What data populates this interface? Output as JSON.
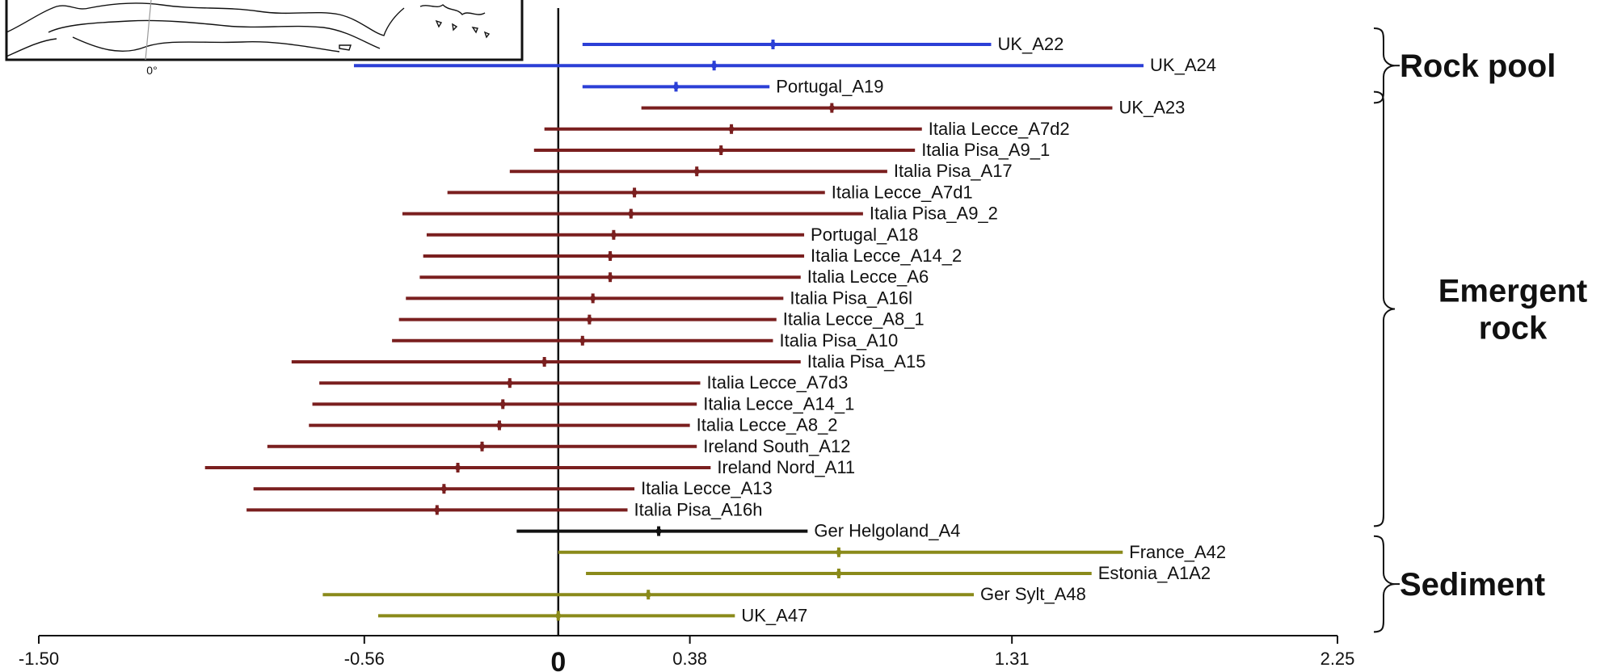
{
  "chart_data": {
    "type": "forest",
    "xlim": [
      -1.5,
      2.25
    ],
    "ticks": [
      {
        "value": -1.5,
        "label": "-1.50"
      },
      {
        "value": -0.56,
        "label": "-0.56"
      },
      {
        "value": 0.38,
        "label": "0.38"
      },
      {
        "value": 1.31,
        "label": "1.31"
      },
      {
        "value": 2.25,
        "label": "2.25"
      }
    ],
    "zero_label": "0",
    "inset_map_label": "0°",
    "colors": {
      "Rock pool": "#2b3fd6",
      "Emergent rock": "#7a1f1f",
      "Ger Helgoland": "#111111",
      "Sediment": "#8a8a1a"
    },
    "groups": [
      {
        "name": "Rock pool",
        "label_lines": [
          "Rock pool"
        ],
        "first": 0,
        "last": 2
      },
      {
        "name": "Emergent rock",
        "label_lines": [
          "Emergent",
          "rock"
        ],
        "first": 3,
        "last": 22
      },
      {
        "name": "Sediment",
        "label_lines": [
          "Sediment"
        ],
        "first": 24,
        "last": 27
      }
    ],
    "rows": [
      {
        "label": "UK_A22",
        "group": "Rock pool",
        "low": 0.07,
        "mid": 0.62,
        "high": 1.25
      },
      {
        "label": "UK_A24",
        "group": "Rock pool",
        "low": -0.59,
        "mid": 0.45,
        "high": 1.69
      },
      {
        "label": "Portugal_A19",
        "group": "Rock pool",
        "low": 0.07,
        "mid": 0.34,
        "high": 0.61
      },
      {
        "label": "UK_A23",
        "group": "Emergent rock",
        "low": 0.24,
        "mid": 0.79,
        "high": 1.6
      },
      {
        "label": "Italia Lecce_A7d2",
        "group": "Emergent rock",
        "low": -0.04,
        "mid": 0.5,
        "high": 1.05
      },
      {
        "label": "Italia Pisa_A9_1",
        "group": "Emergent rock",
        "low": -0.07,
        "mid": 0.47,
        "high": 1.03
      },
      {
        "label": "Italia Pisa_A17",
        "group": "Emergent rock",
        "low": -0.14,
        "mid": 0.4,
        "high": 0.95
      },
      {
        "label": "Italia Lecce_A7d1",
        "group": "Emergent rock",
        "low": -0.32,
        "mid": 0.22,
        "high": 0.77
      },
      {
        "label": "Italia Pisa_A9_2",
        "group": "Emergent rock",
        "low": -0.45,
        "mid": 0.21,
        "high": 0.88
      },
      {
        "label": "Portugal_A18",
        "group": "Emergent rock",
        "low": -0.38,
        "mid": 0.16,
        "high": 0.71
      },
      {
        "label": "Italia Lecce_A14_2",
        "group": "Emergent rock",
        "low": -0.39,
        "mid": 0.15,
        "high": 0.71
      },
      {
        "label": "Italia Lecce_A6",
        "group": "Emergent rock",
        "low": -0.4,
        "mid": 0.15,
        "high": 0.7
      },
      {
        "label": "Italia Pisa_A16l",
        "group": "Emergent rock",
        "low": -0.44,
        "mid": 0.1,
        "high": 0.65
      },
      {
        "label": "Italia Lecce_A8_1",
        "group": "Emergent rock",
        "low": -0.46,
        "mid": 0.09,
        "high": 0.63
      },
      {
        "label": "Italia Pisa_A10",
        "group": "Emergent rock",
        "low": -0.48,
        "mid": 0.07,
        "high": 0.62
      },
      {
        "label": "Italia Pisa_A15",
        "group": "Emergent rock",
        "low": -0.77,
        "mid": -0.04,
        "high": 0.7
      },
      {
        "label": "Italia Lecce_A7d3",
        "group": "Emergent rock",
        "low": -0.69,
        "mid": -0.14,
        "high": 0.41
      },
      {
        "label": "Italia Lecce_A14_1",
        "group": "Emergent rock",
        "low": -0.71,
        "mid": -0.16,
        "high": 0.4
      },
      {
        "label": "Italia Lecce_A8_2",
        "group": "Emergent rock",
        "low": -0.72,
        "mid": -0.17,
        "high": 0.38
      },
      {
        "label": "Ireland South_A12",
        "group": "Emergent rock",
        "low": -0.84,
        "mid": -0.22,
        "high": 0.4
      },
      {
        "label": "Ireland Nord_A11",
        "group": "Emergent rock",
        "low": -1.02,
        "mid": -0.29,
        "high": 0.44
      },
      {
        "label": "Italia Lecce_A13",
        "group": "Emergent rock",
        "low": -0.88,
        "mid": -0.33,
        "high": 0.22
      },
      {
        "label": "Italia Pisa_A16h",
        "group": "Emergent rock",
        "low": -0.9,
        "mid": -0.35,
        "high": 0.2
      },
      {
        "label": "Ger Helgoland_A4",
        "group": "Ger Helgoland",
        "low": -0.12,
        "mid": 0.29,
        "high": 0.72
      },
      {
        "label": "France_A42",
        "group": "Sediment",
        "low": 0.0,
        "mid": 0.81,
        "high": 1.63
      },
      {
        "label": "Estonia_A1A2",
        "group": "Sediment",
        "low": 0.08,
        "mid": 0.81,
        "high": 1.54
      },
      {
        "label": "Ger Sylt_A48",
        "group": "Sediment",
        "low": -0.68,
        "mid": 0.26,
        "high": 1.2
      },
      {
        "label": "UK_A47",
        "group": "Sediment",
        "low": -0.52,
        "mid": 0.0,
        "high": 0.51
      }
    ]
  }
}
